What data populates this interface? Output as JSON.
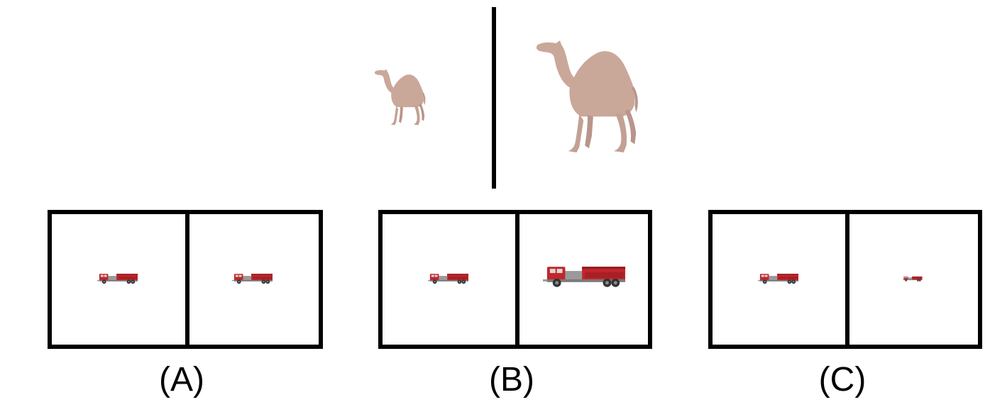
{
  "options": [
    {
      "label": "(A)"
    },
    {
      "label": "(B)"
    },
    {
      "label": "(C)"
    }
  ],
  "colors": {
    "camel": "#c9a89a",
    "truck_red": "#c0262b",
    "truck_gray": "#9a9a9a",
    "border": "#000000"
  },
  "icons": {
    "reference_left": "camel-icon",
    "reference_right": "camel-icon",
    "option_items": "fire-truck-icon"
  }
}
